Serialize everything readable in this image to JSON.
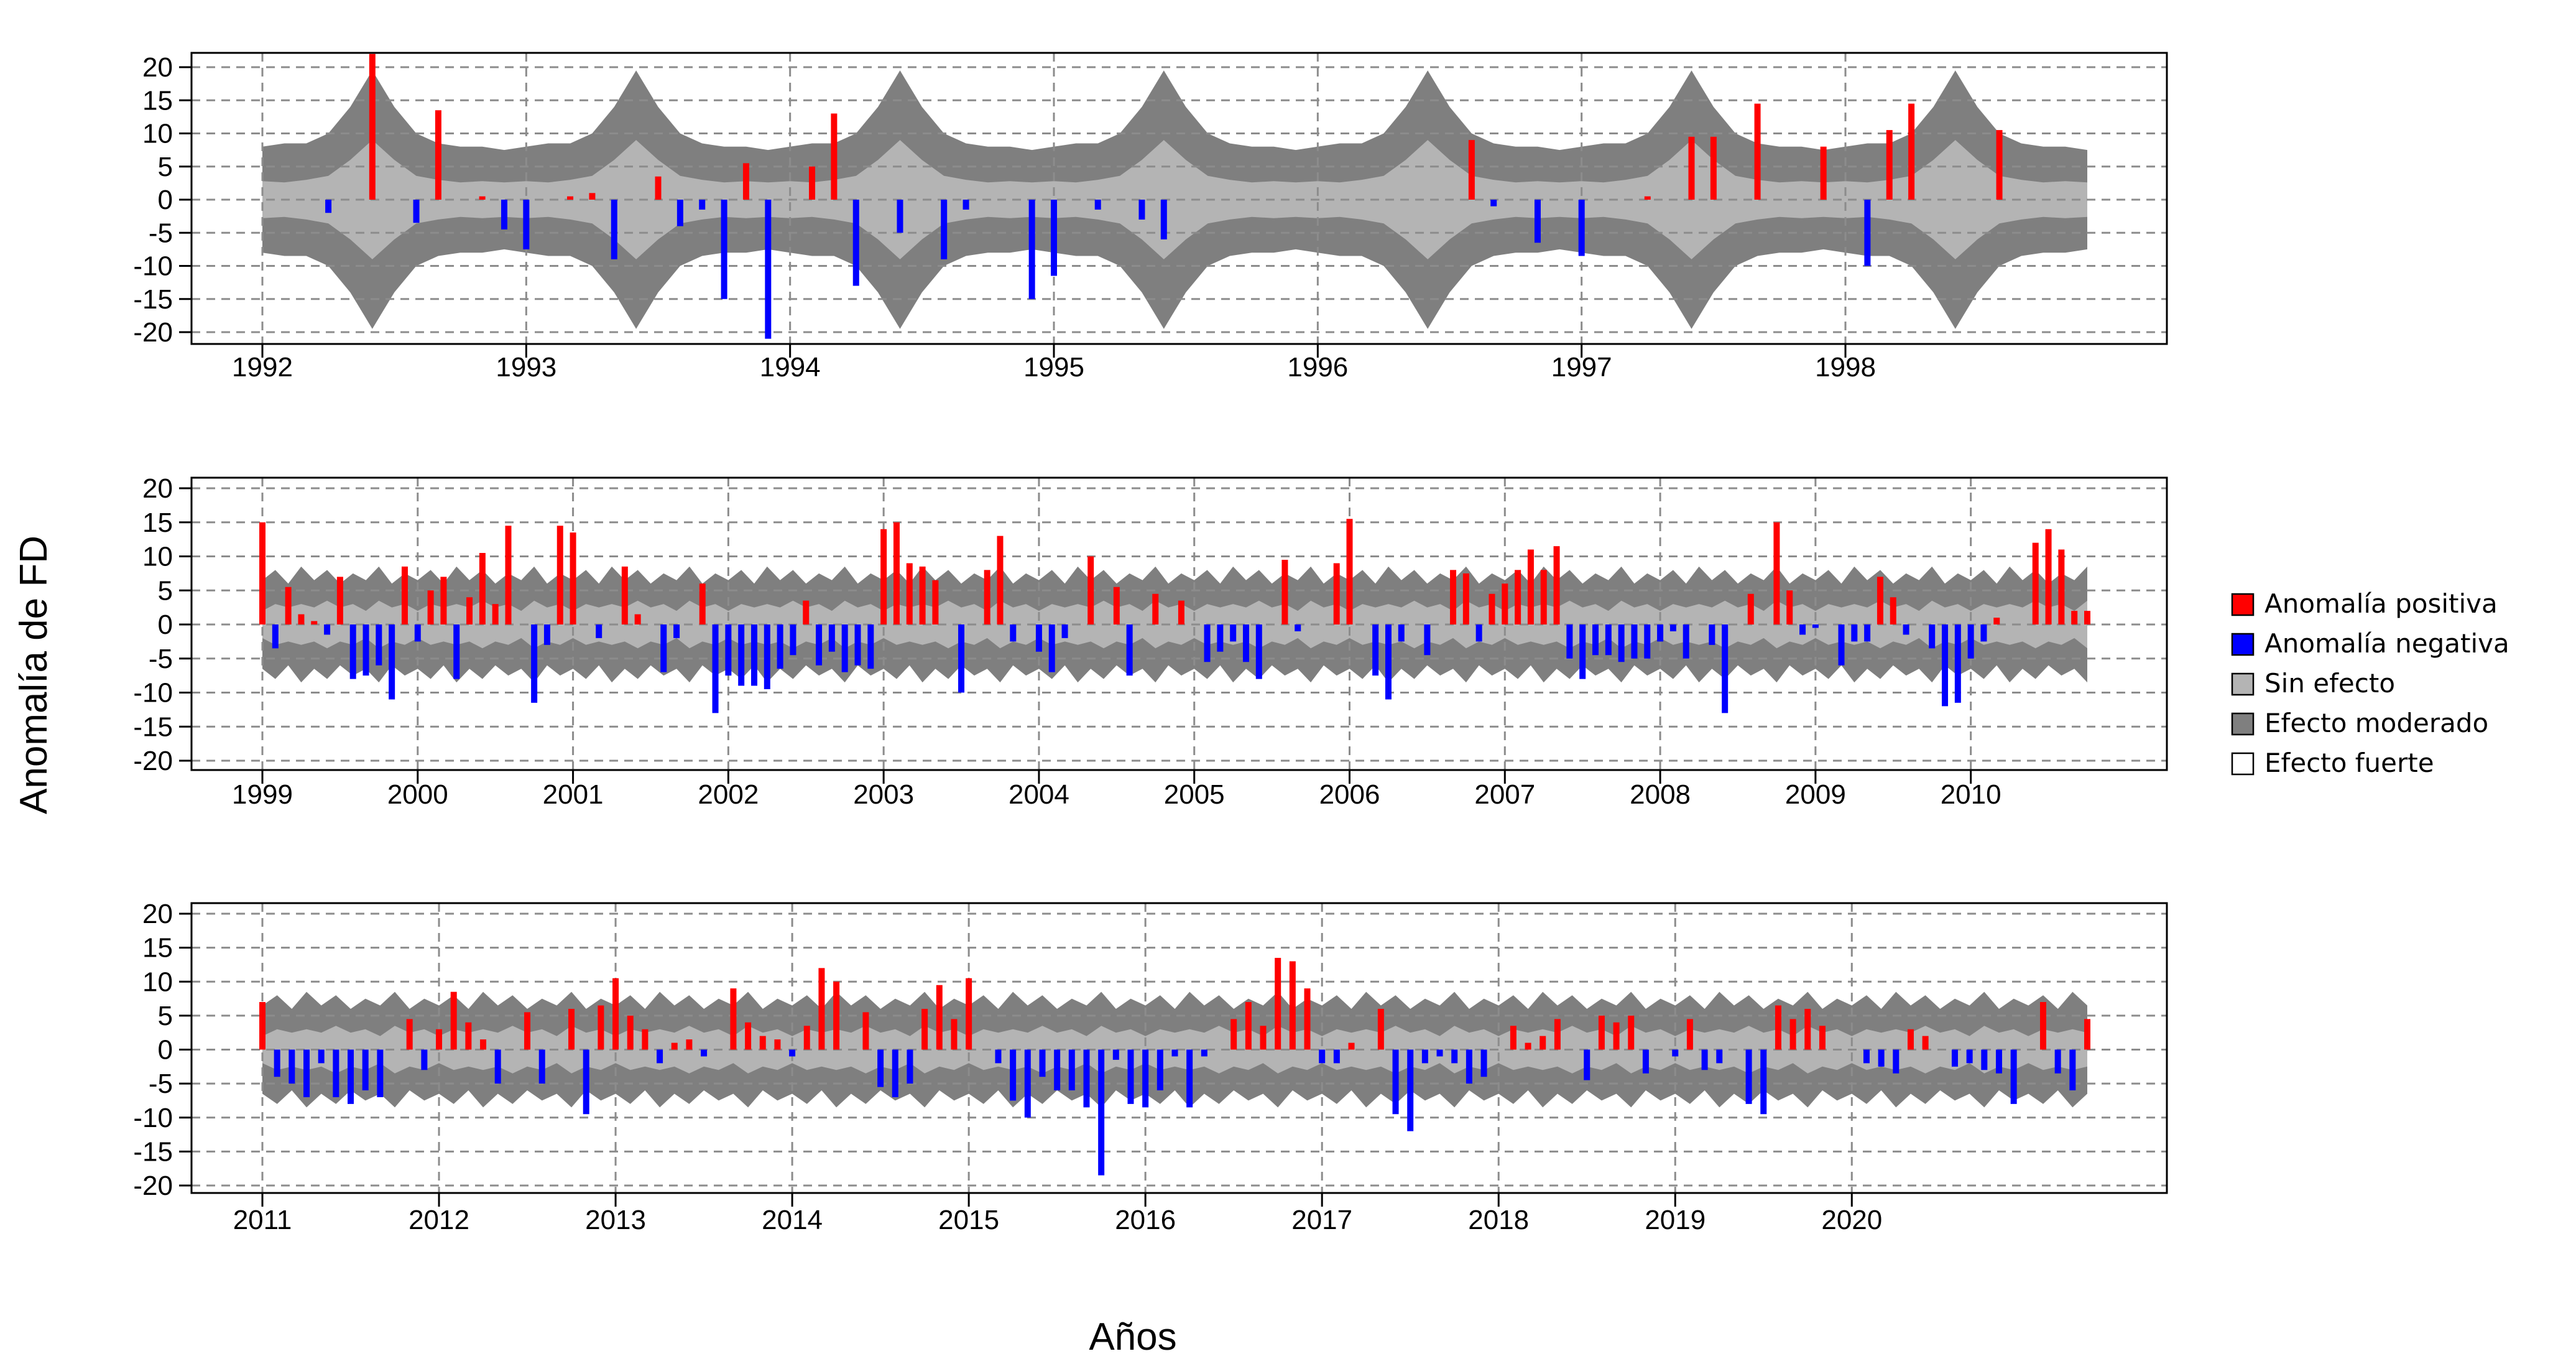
{
  "chart_data": {
    "type": "bar",
    "ylabel": "Anomalía de FD",
    "xlabel": "Años",
    "colors": {
      "positive": "#ff0000",
      "negative": "#0000ff",
      "no_effect": "#b4b4b4",
      "moderate_effect": "#7f7f7f",
      "strong_effect": "#ffffff",
      "grid": "#8c8c8c"
    },
    "legend": {
      "placement": "right",
      "entries": [
        {
          "label": "Anomalía positiva",
          "color": "#ff0000"
        },
        {
          "label": "Anomalía negativa",
          "color": "#0000ff"
        },
        {
          "label": "Sin efecto",
          "color": "#b4b4b4"
        },
        {
          "label": "Efecto moderado",
          "color": "#7f7f7f"
        },
        {
          "label": "Efecto fuerte",
          "color": "#ffffff"
        }
      ]
    },
    "panels": [
      {
        "xlim": [
          1992,
          1999
        ],
        "ylim": [
          -21,
          22
        ],
        "yticks": [
          -20,
          -15,
          -10,
          -5,
          0,
          5,
          10,
          15,
          20
        ],
        "xticks": [
          "1992",
          "1993",
          "1994",
          "1995",
          "1996",
          "1997",
          "1998"
        ],
        "grid": true,
        "band_inner": [
          2.8,
          2.6,
          3.0,
          3.6,
          6.0,
          9.0,
          6.0,
          3.6,
          3.0,
          2.6,
          2.8,
          2.6,
          2.8,
          2.6,
          3.0,
          3.6,
          6.0,
          9.0,
          6.0,
          3.6,
          3.0,
          2.6,
          2.8,
          2.6,
          2.8,
          2.6,
          3.0,
          3.6,
          6.0,
          9.0,
          6.0,
          3.6,
          3.0,
          2.6,
          2.8,
          2.6,
          2.8,
          2.6,
          3.0,
          3.6,
          6.0,
          9.0,
          6.0,
          3.6,
          3.0,
          2.6,
          2.8,
          2.6,
          2.8,
          2.6,
          3.0,
          3.6,
          6.0,
          9.0,
          6.0,
          3.6,
          3.0,
          2.6,
          2.8,
          2.6,
          2.8,
          2.6,
          3.0,
          3.6,
          6.0,
          9.0,
          6.0,
          3.6,
          3.0,
          2.6,
          2.8,
          2.6,
          2.8,
          2.6,
          3.0,
          3.6,
          6.0,
          9.0,
          6.0,
          3.6,
          3.0,
          2.6,
          2.8,
          2.6
        ],
        "band_outer": [
          8.0,
          8.5,
          8.5,
          10.0,
          14.0,
          19.5,
          14.0,
          10.0,
          8.5,
          8.0,
          8.0,
          7.5,
          8.0,
          8.5,
          8.5,
          10.0,
          14.0,
          19.5,
          14.0,
          10.0,
          8.5,
          8.0,
          8.0,
          7.5,
          8.0,
          8.5,
          8.5,
          10.0,
          14.0,
          19.5,
          14.0,
          10.0,
          8.5,
          8.0,
          8.0,
          7.5,
          8.0,
          8.5,
          8.5,
          10.0,
          14.0,
          19.5,
          14.0,
          10.0,
          8.5,
          8.0,
          8.0,
          7.5,
          8.0,
          8.5,
          8.5,
          10.0,
          14.0,
          19.5,
          14.0,
          10.0,
          8.5,
          8.0,
          8.0,
          7.5,
          8.0,
          8.5,
          8.5,
          10.0,
          14.0,
          19.5,
          14.0,
          10.0,
          8.5,
          8.0,
          8.0,
          7.5,
          8.0,
          8.5,
          8.5,
          10.0,
          14.0,
          19.5,
          14.0,
          10.0,
          8.5,
          8.0,
          8.0,
          7.5
        ],
        "values": [
          0,
          0,
          0,
          -2,
          0,
          22,
          0,
          -3.5,
          13.5,
          0,
          0.5,
          -4.5,
          -7.5,
          0,
          0.5,
          1,
          -9,
          0,
          3.5,
          -4,
          -1.5,
          -15,
          5.5,
          -21,
          0,
          5,
          13,
          -13,
          0,
          -5,
          0,
          -9,
          -1.5,
          0,
          0,
          -15,
          -11.5,
          0,
          -1.5,
          0,
          -3,
          -6,
          0,
          0,
          0,
          0,
          0,
          0,
          0,
          0,
          0,
          0,
          0,
          0,
          0,
          9,
          -1,
          0,
          -6.5,
          0,
          -8.5,
          0,
          0,
          0.5,
          0,
          9.5,
          9.5,
          0,
          14.5,
          0,
          0,
          8,
          0,
          -10,
          10.5,
          14.5,
          0,
          0,
          0,
          10.5,
          0,
          0,
          0,
          0
        ]
      },
      {
        "xlim": [
          1999,
          2011
        ],
        "ylim": [
          -21,
          21
        ],
        "yticks": [
          -20,
          -15,
          -10,
          -5,
          0,
          5,
          10,
          15,
          20
        ],
        "xticks": [
          "1999",
          "2000",
          "2001",
          "2002",
          "2003",
          "2004",
          "2005",
          "2006",
          "2007",
          "2008",
          "2009",
          "2010"
        ],
        "grid": true,
        "band_inner": [
          2.0,
          3.0,
          2.5,
          3.0,
          2.5,
          3.5,
          2.5,
          3.0,
          2.0,
          3.5,
          2.5,
          3.0
        ],
        "band_outer": [
          6.5,
          8.0,
          6.0,
          8.5,
          6.5,
          8.0,
          6.0,
          7.5,
          6.5,
          8.5,
          6.0,
          7.5
        ],
        "values": [
          15,
          -3.5,
          5.5,
          1.5,
          0.5,
          -1.5,
          7,
          -8,
          -7.5,
          -6,
          -11,
          8.5,
          -2.5,
          5,
          7,
          -8,
          4,
          10.5,
          3,
          14.5,
          0,
          -11.5,
          -3,
          14.5,
          13.5,
          0,
          -2,
          0,
          8.5,
          1.5,
          0,
          -7,
          -2,
          0,
          6,
          -13,
          -7.5,
          -9,
          -9,
          -9.5,
          -6.5,
          -4.5,
          3.5,
          -6,
          -4,
          -7,
          -6,
          -6.5,
          14,
          15,
          9,
          8.5,
          6.5,
          0,
          -10,
          0,
          8,
          13,
          -2.5,
          0,
          -4,
          -7,
          -2,
          0,
          10,
          0,
          5.5,
          -7.5,
          0,
          4.5,
          0,
          3.5,
          0,
          -5.5,
          -4,
          -2.5,
          -5.5,
          -8,
          0,
          9.5,
          -1,
          0,
          0,
          9,
          15.5,
          0,
          -7.5,
          -11,
          -2.5,
          0,
          -4.5,
          0,
          8,
          7.5,
          -2.5,
          4.5,
          6,
          8,
          11,
          8,
          11.5,
          -5,
          -8,
          -4.5,
          -4.5,
          -5.5,
          -5,
          -5,
          -2.5,
          -1,
          -5,
          0,
          -3,
          -13,
          0,
          4.5,
          0,
          15,
          5,
          -1.5,
          -0.5,
          0,
          -6,
          -2.5,
          -2.5,
          7,
          4,
          -1.5,
          0,
          -3.5,
          -12,
          -11.5,
          -5,
          -2.5,
          1,
          0,
          0,
          12,
          14,
          11,
          2,
          2
        ]
      },
      {
        "xlim": [
          2011,
          2021
        ],
        "ylim": [
          -21,
          21
        ],
        "yticks": [
          -20,
          -15,
          -10,
          -5,
          0,
          5,
          10,
          15,
          20
        ],
        "xticks": [
          "2011",
          "2012",
          "2013",
          "2014",
          "2015",
          "2016",
          "2017",
          "2018",
          "2019",
          "2020"
        ],
        "grid": true,
        "band_inner": [
          2.0,
          3.0,
          2.5,
          3.0,
          2.5,
          3.5,
          2.5,
          3.0,
          2.0,
          3.5,
          2.5,
          3.0
        ],
        "band_outer": [
          6.5,
          8.0,
          6.0,
          8.5,
          6.5,
          8.0,
          6.0,
          7.5,
          6.5,
          8.5,
          6.0,
          7.5
        ],
        "values": [
          7,
          -4,
          -5,
          -7,
          -2,
          -7,
          -8,
          -6,
          -7,
          0,
          4.5,
          -3,
          3,
          8.5,
          4,
          1.5,
          -5,
          0,
          5.5,
          -5,
          0,
          6,
          -9.5,
          6.5,
          10.5,
          5,
          3,
          -2,
          1,
          1.5,
          -1,
          0,
          9,
          4,
          2,
          1.5,
          -1,
          3.5,
          12,
          10,
          0,
          5.5,
          -5.5,
          -7,
          -5,
          6,
          9.5,
          4.5,
          10.5,
          0,
          -2,
          -7.5,
          -10,
          -4,
          -6,
          -6,
          -8.5,
          -18.5,
          -1.5,
          -8,
          -8.5,
          -6,
          -1,
          -8.5,
          -1,
          0,
          4.5,
          7,
          3.5,
          13.5,
          13,
          9,
          -2,
          -2,
          1,
          0,
          6,
          -9.5,
          -12,
          -2,
          -1,
          -2,
          -5,
          -4,
          0,
          3.5,
          1,
          2,
          4.5,
          0,
          -4.5,
          5,
          4,
          5,
          -3.5,
          0,
          -1,
          4.5,
          -3,
          -2,
          0,
          -8,
          -9.5,
          6.5,
          4.5,
          6,
          3.5,
          0,
          0,
          -2,
          -2.5,
          -3.5,
          3,
          2,
          0,
          -2.5,
          -2,
          -3,
          -3.5,
          -8,
          0,
          7,
          -3.5,
          -6,
          4.5
        ]
      }
    ]
  }
}
